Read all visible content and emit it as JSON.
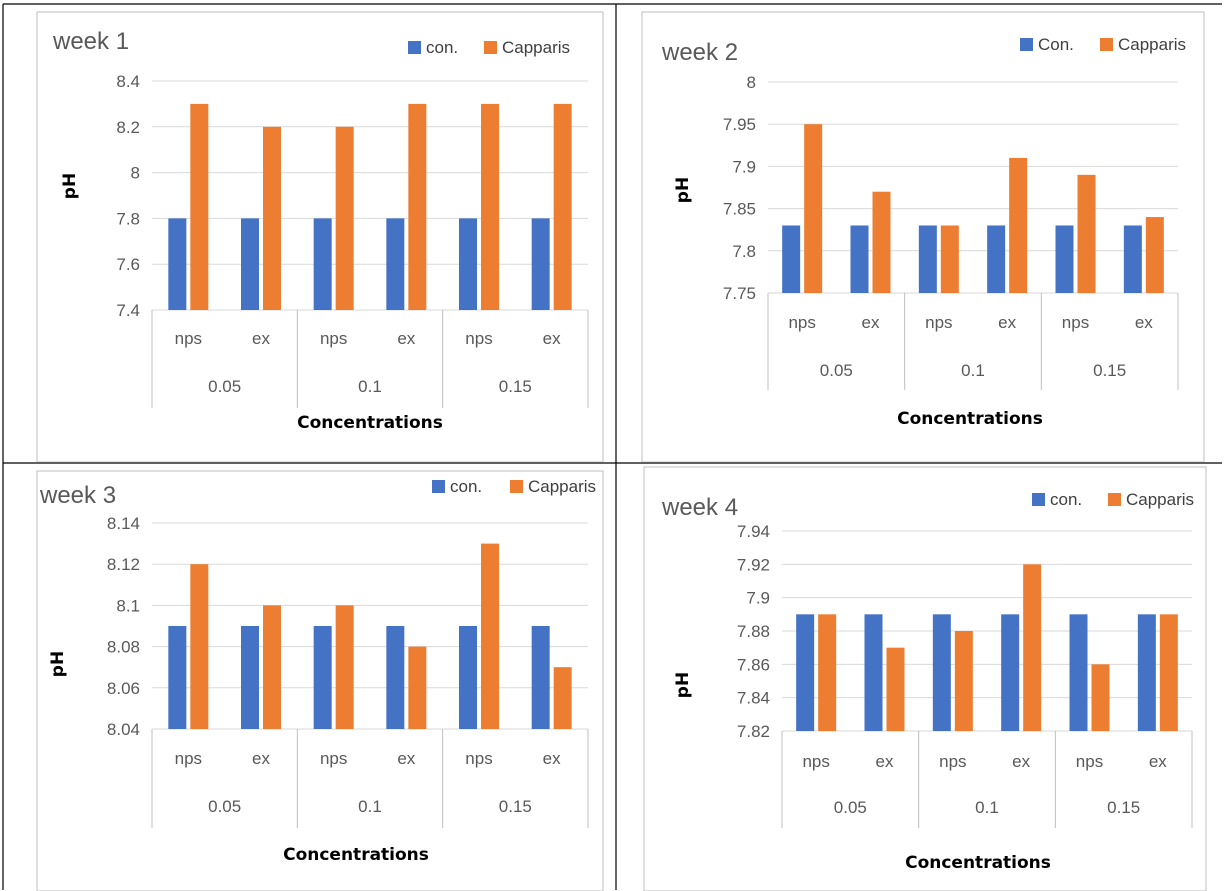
{
  "colors": {
    "con": "#4472c4",
    "capparis": "#ed7d31"
  },
  "chart_data": [
    {
      "type": "bar",
      "title": "week 1",
      "ylabel": "pH",
      "xlabel": "Concentrations",
      "ylim": [
        7.4,
        8.4
      ],
      "yticks": [
        "7.4",
        "7.6",
        "7.8",
        "8",
        "8.2",
        "8.4"
      ],
      "groups": [
        "0.05",
        "0.1",
        "0.15"
      ],
      "categories": [
        "nps",
        "ex",
        "nps",
        "ex",
        "nps",
        "ex"
      ],
      "legend_position": "top-right",
      "series": [
        {
          "name": "con.",
          "values": [
            7.8,
            7.8,
            7.8,
            7.8,
            7.8,
            7.8
          ]
        },
        {
          "name": "Capparis",
          "values": [
            8.3,
            8.2,
            8.2,
            8.3,
            8.3,
            8.3
          ]
        }
      ]
    },
    {
      "type": "bar",
      "title": "week 2",
      "ylabel": "pH",
      "xlabel": "Concentrations",
      "ylim": [
        7.75,
        8.0
      ],
      "yticks": [
        "7.75",
        "7.8",
        "7.85",
        "7.9",
        "7.95",
        "8"
      ],
      "groups": [
        "0.05",
        "0.1",
        "0.15"
      ],
      "categories": [
        "nps",
        "ex",
        "nps",
        "ex",
        "nps",
        "ex"
      ],
      "legend_position": "top-right",
      "series": [
        {
          "name": "Con.",
          "values": [
            7.83,
            7.83,
            7.83,
            7.83,
            7.83,
            7.83
          ]
        },
        {
          "name": "Capparis",
          "values": [
            7.95,
            7.87,
            7.83,
            7.91,
            7.89,
            7.84
          ]
        }
      ]
    },
    {
      "type": "bar",
      "title": "week 3",
      "ylabel": "pH",
      "xlabel": "Concentrations",
      "ylim": [
        8.04,
        8.14
      ],
      "yticks": [
        "8.04",
        "8.06",
        "8.08",
        "8.1",
        "8.12",
        "8.14"
      ],
      "groups": [
        "0.05",
        "0.1",
        "0.15"
      ],
      "categories": [
        "nps",
        "ex",
        "nps",
        "ex",
        "nps",
        "ex"
      ],
      "legend_position": "top-right",
      "series": [
        {
          "name": "con.",
          "values": [
            8.09,
            8.09,
            8.09,
            8.09,
            8.09,
            8.09
          ]
        },
        {
          "name": "Capparis",
          "values": [
            8.12,
            8.1,
            8.1,
            8.08,
            8.13,
            8.07
          ]
        }
      ]
    },
    {
      "type": "bar",
      "title": "week 4",
      "ylabel": "pH",
      "xlabel": "Concentrations",
      "ylim": [
        7.82,
        7.94
      ],
      "yticks": [
        "7.82",
        "7.84",
        "7.86",
        "7.88",
        "7.9",
        "7.92",
        "7.94"
      ],
      "groups": [
        "0.05",
        "0.1",
        "0.15"
      ],
      "categories": [
        "nps",
        "ex",
        "nps",
        "ex",
        "nps",
        "ex"
      ],
      "legend_position": "top-right",
      "series": [
        {
          "name": "con.",
          "values": [
            7.89,
            7.89,
            7.89,
            7.89,
            7.89,
            7.89
          ]
        },
        {
          "name": "Capparis",
          "values": [
            7.89,
            7.87,
            7.88,
            7.92,
            7.86,
            7.89
          ]
        }
      ]
    }
  ]
}
